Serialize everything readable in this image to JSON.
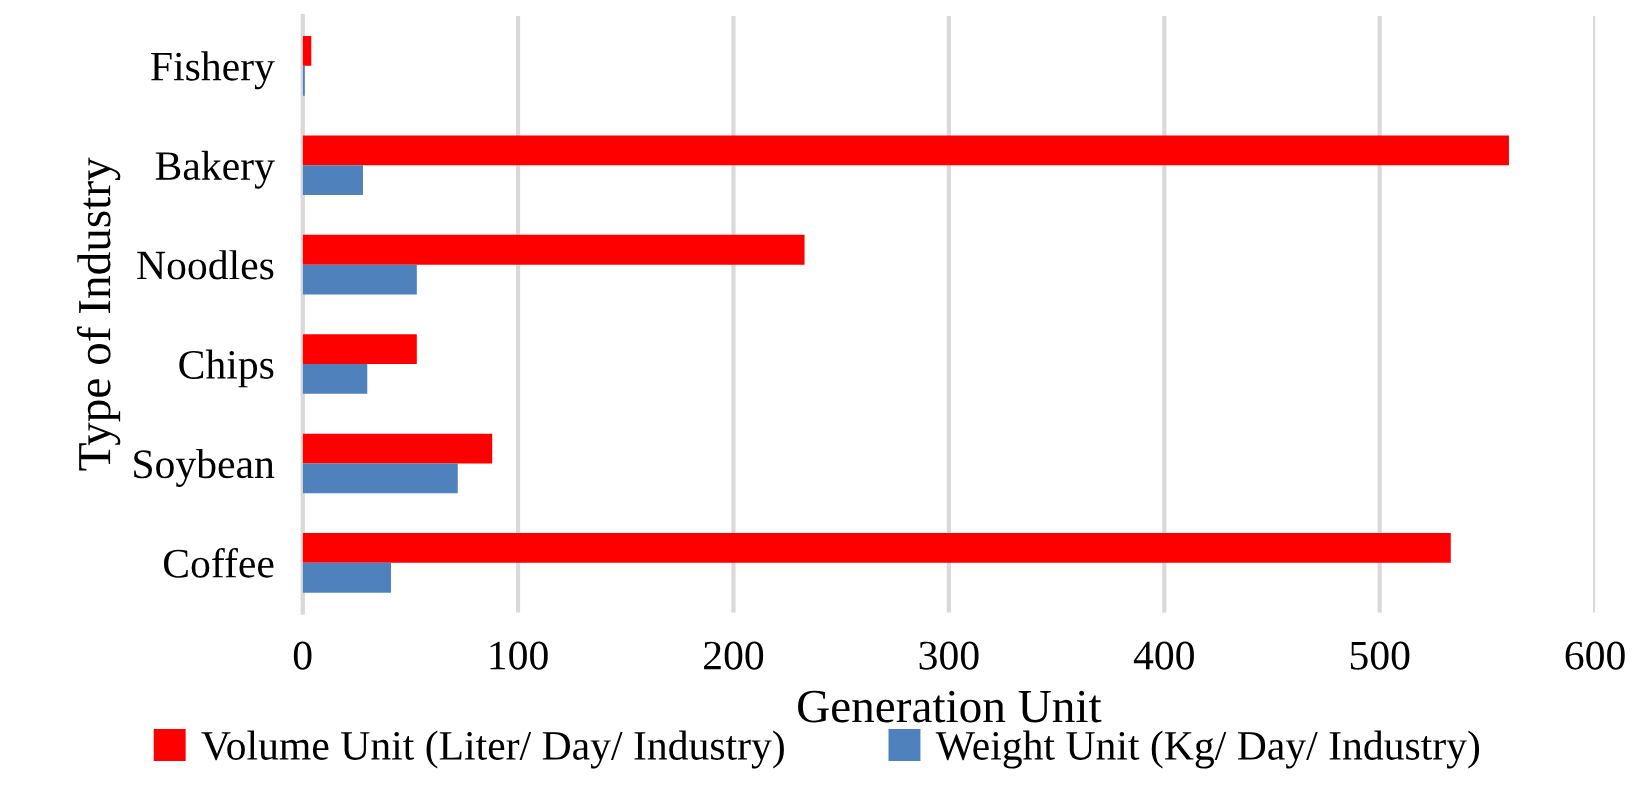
{
  "chart_data": {
    "type": "bar",
    "orientation": "horizontal",
    "xlabel": "Generation Unit",
    "ylabel": "Type of Industry",
    "categories": [
      "Fishery",
      "Bakery",
      "Noodles",
      "Chips",
      "Soybean",
      "Coffee"
    ],
    "series": [
      {
        "name": "Volume Unit (Liter/ Day/ Industry)",
        "color": "#ff0000",
        "values": [
          4,
          560,
          233,
          53,
          88,
          533
        ]
      },
      {
        "name": "Weight Unit (Kg/ Day/ Industry)",
        "color": "#4f81bd",
        "values": [
          1,
          28,
          53,
          30,
          72,
          41
        ]
      }
    ],
    "xlim": [
      0,
      600
    ],
    "xticks": [
      0,
      100,
      200,
      300,
      400,
      500,
      600
    ],
    "grid": "x",
    "legend": "bottom"
  }
}
